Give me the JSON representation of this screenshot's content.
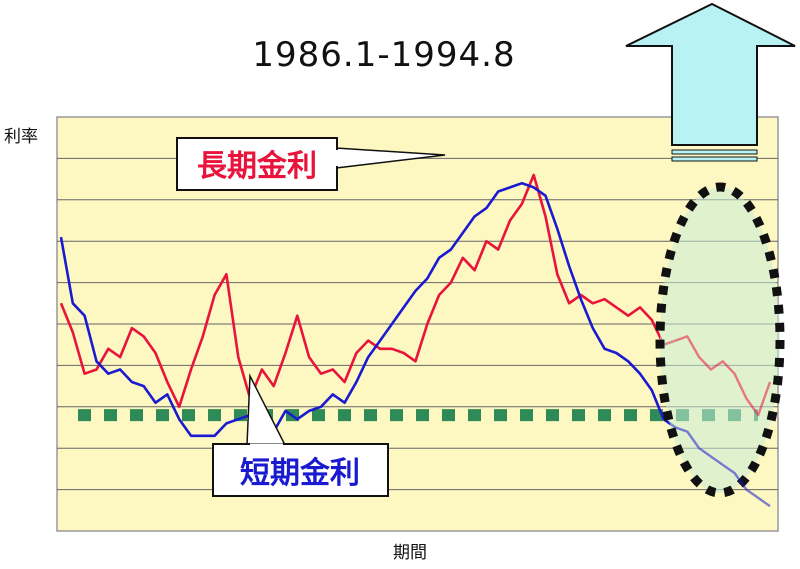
{
  "chart_data": {
    "type": "line",
    "title": "1986.1-1994.8",
    "ylabel": "利率",
    "xlabel": "期間",
    "ylim": [
      0,
      10
    ],
    "grid": true,
    "series": [
      {
        "name": "長期金利",
        "color": "#e8143c",
        "callout": "長期金利",
        "values": [
          5.5,
          4.8,
          3.8,
          3.9,
          4.4,
          4.2,
          4.9,
          4.7,
          4.3,
          3.6,
          3.0,
          3.9,
          4.7,
          5.7,
          6.2,
          4.2,
          3.2,
          3.9,
          3.5,
          4.3,
          5.2,
          4.2,
          3.8,
          3.9,
          3.6,
          4.3,
          4.6,
          4.4,
          4.4,
          4.3,
          4.1,
          5.0,
          5.7,
          6.0,
          6.6,
          6.3,
          7.0,
          6.8,
          7.5,
          7.9,
          8.6,
          7.6,
          6.2,
          5.5,
          5.7,
          5.5,
          5.6,
          5.4,
          5.2,
          5.4,
          5.1,
          4.5,
          4.6,
          4.7,
          4.2,
          3.9,
          4.1,
          3.8,
          3.2,
          2.8,
          3.6
        ]
      },
      {
        "name": "短期金利",
        "color": "#1a1ad0",
        "callout": "短期金利",
        "values": [
          7.1,
          5.5,
          5.2,
          4.1,
          3.8,
          3.9,
          3.6,
          3.5,
          3.1,
          3.3,
          2.7,
          2.3,
          2.3,
          2.3,
          2.6,
          2.7,
          2.8,
          2.4,
          2.4,
          2.9,
          2.7,
          2.9,
          3.0,
          3.3,
          3.1,
          3.6,
          4.2,
          4.6,
          5.0,
          5.4,
          5.8,
          6.1,
          6.6,
          6.8,
          7.2,
          7.6,
          7.8,
          8.2,
          8.3,
          8.4,
          8.3,
          8.1,
          7.3,
          6.4,
          5.6,
          4.9,
          4.4,
          4.3,
          4.1,
          3.8,
          3.4,
          2.7,
          2.5,
          2.4,
          2.0,
          1.8,
          1.6,
          1.4,
          1.0,
          0.8,
          0.6
        ]
      }
    ],
    "reference_level": 2.8,
    "forecast_start_index": 52
  }
}
